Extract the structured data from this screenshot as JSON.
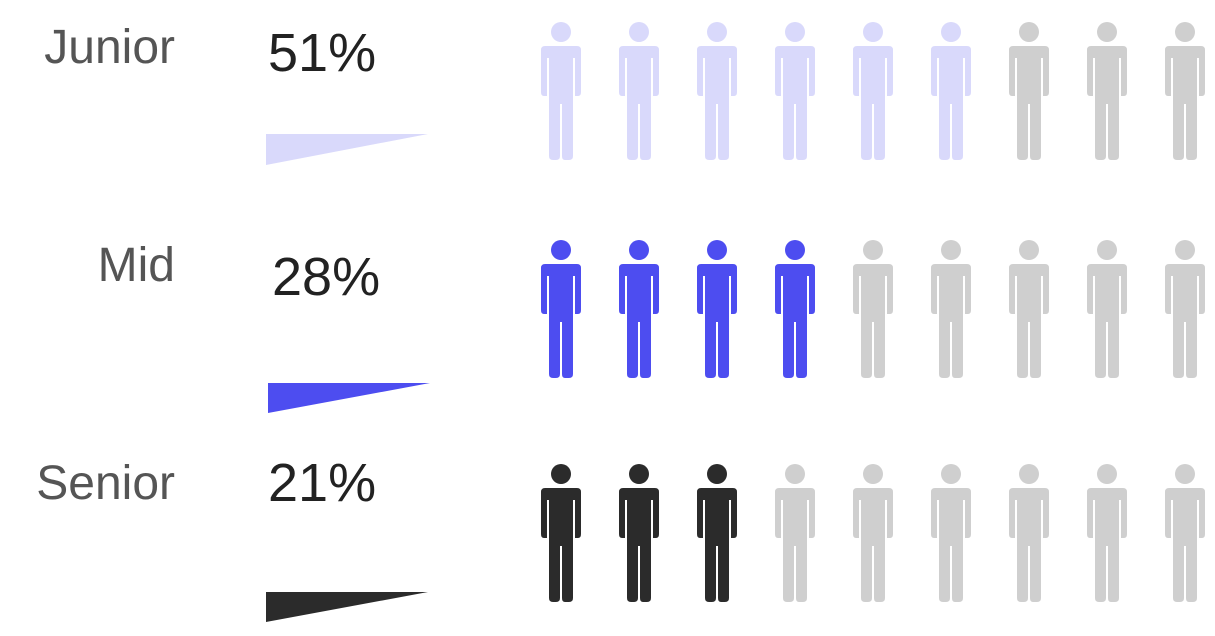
{
  "chart_data": {
    "type": "pictograph",
    "icons_per_row": 9,
    "rows": [
      {
        "category": "Junior",
        "percent_label": "51%",
        "value": 51,
        "filled_icons": 6,
        "color": "#d9d9fb"
      },
      {
        "category": "Mid",
        "percent_label": "28%",
        "value": 28,
        "filled_icons": 4,
        "color": "#4d4df0"
      },
      {
        "category": "Senior",
        "percent_label": "21%",
        "value": 21,
        "filled_icons": 3,
        "color": "#2b2b2b"
      }
    ],
    "empty_color": "#cfcfcf"
  }
}
